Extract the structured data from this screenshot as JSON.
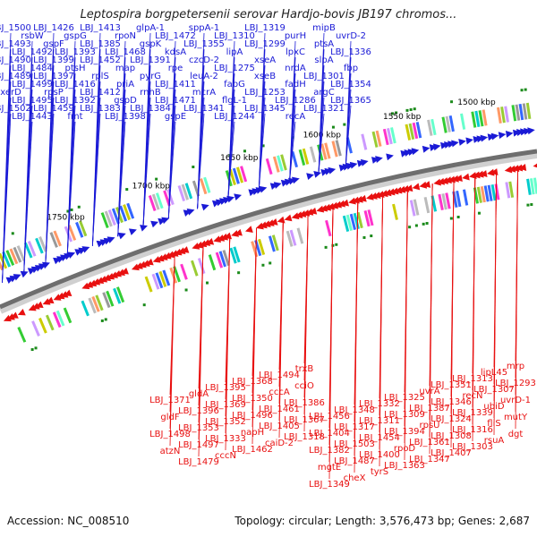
{
  "title": "Leptospira borgpetersenii serovar Hardjo-bovis JB197 chromos...",
  "footer": {
    "accession": "Accession: NC_008510",
    "summary": "Topology: circular; Length: 3,576,473 bp; Genes: 2,687"
  },
  "scale_ticks": [
    "1500 kbp",
    "1550 kbp",
    "1600 kbp",
    "1650 kbp",
    "1700 kbp",
    "1750 kbp"
  ],
  "colors": {
    "forward": "#1a1ad6",
    "reverse": "#e81010",
    "backbone": "#777777"
  },
  "forward_labels": [
    "LBJ_1500",
    "LBJ_1493",
    "LBJ_1490",
    "LBJ_1489",
    "xerD",
    "LBJ_1502",
    "rsbW",
    "LBJ_1492",
    "LBJ_1484",
    "LBJ_1499",
    "LBJ_1495",
    "LBJ_1443",
    "LBJ_1426",
    "gspF",
    "LBJ_1399",
    "LBJ_1397",
    "rpsP",
    "LBJ_1459",
    "gspG",
    "LBJ_1393",
    "ptsH",
    "LBJ_1416",
    "LBJ_1392",
    "fmt",
    "LBJ_1413",
    "LBJ_1385",
    "LBJ_1452",
    "rplS",
    "LBJ_1412",
    "LBJ_1383",
    "rpoN",
    "LBJ_1468",
    "map",
    "priA",
    "gspD",
    "LBJ_1398",
    "glpA-1",
    "gspK",
    "LBJ_1391",
    "pyrG",
    "rnhB",
    "LBJ_1384",
    "LBJ_1472",
    "kdsA",
    "rpe",
    "LBJ_1411",
    "LBJ_1471",
    "gspE",
    "sppA-1",
    "LBJ_1355",
    "czcD-2",
    "leuA-2",
    "mcrA",
    "LBJ_1341",
    "LBJ_1310",
    "lipA",
    "LBJ_1275",
    "fabG",
    "flgL-1",
    "LBJ_1244",
    "LBJ_1319",
    "LBJ_1299",
    "xseA",
    "xseB",
    "LBJ_1253",
    "LBJ_1345",
    "purH",
    "lpxC",
    "nrdA",
    "fadH",
    "LBJ_1286",
    "recA",
    "mipB",
    "ptsA",
    "slpA",
    "LBJ_1301",
    "argC",
    "LBJ_1321",
    "uvrD-2",
    "LBJ_1336",
    "fbp",
    "LBJ_1354",
    "LBJ_1365"
  ],
  "reverse_labels": [
    "mrp",
    "LBJ_1293",
    "uvrD-1",
    "mutY",
    "dgt",
    "lipL45",
    "LBJ_1307",
    "ubiD",
    "fliS",
    "rsuA",
    "LBJ_1313",
    "recN",
    "LBJ_1339",
    "LBJ_1316",
    "LBJ_1303",
    "LBJ_1351",
    "LBJ_1346",
    "LBJ_1324",
    "LBJ_1308",
    "LBJ_1407",
    "uvrA",
    "LBJ_1387",
    "rpsU",
    "LBJ_1361",
    "LBJ_1347",
    "LBJ_1325",
    "LBJ_1309",
    "LBJ_1394",
    "rpoD",
    "LBJ_1363",
    "LBJ_1332",
    "LBJ_1311",
    "LBJ_1454",
    "LBJ_1400",
    "tyrS",
    "LBJ_1348",
    "LBJ_1317",
    "LBJ_1503",
    "LBJ_1487",
    "cheX",
    "LBJ_1456",
    "LBJ_1404",
    "LBJ_1382",
    "mgtE",
    "LBJ_1349",
    "trxB",
    "cciO",
    "LBJ_1386",
    "LBJ_1367",
    "LBJ_1318",
    "LBJ_1494",
    "cccA",
    "LBJ_1461",
    "LBJ_1405",
    "caiD-2",
    "LBJ_1368",
    "LBJ_1350",
    "LBJ_1496",
    "napH",
    "LBJ_1462",
    "LBJ_1395",
    "LBJ_1369",
    "LBJ_1352",
    "LBJ_1333",
    "cccN",
    "gldA",
    "LBJ_1396",
    "LBJ_1353",
    "LBJ_1497",
    "LBJ_1479",
    "LBJ_1371",
    "gldF",
    "LBJ_1498",
    "atzN"
  ]
}
